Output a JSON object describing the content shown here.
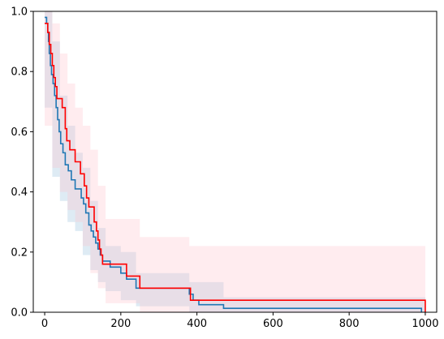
{
  "chart_data": {
    "type": "line",
    "title": "",
    "xlabel": "",
    "ylabel": "",
    "xlim": [
      -30,
      1030
    ],
    "ylim": [
      0,
      1
    ],
    "grid": false,
    "legend": null,
    "x_ticks": [
      "0",
      "200",
      "400",
      "600",
      "800",
      "1000"
    ],
    "y_ticks": [
      "0.0",
      "0.2",
      "0.4",
      "0.6",
      "0.8",
      "1.0"
    ],
    "series": [
      {
        "color": "#1f77b4",
        "style": "step",
        "points": [
          [
            0,
            0.98
          ],
          [
            5,
            0.96
          ],
          [
            8,
            0.93
          ],
          [
            10,
            0.9
          ],
          [
            12,
            0.86
          ],
          [
            15,
            0.82
          ],
          [
            18,
            0.79
          ],
          [
            22,
            0.76
          ],
          [
            26,
            0.72
          ],
          [
            30,
            0.68
          ],
          [
            34,
            0.64
          ],
          [
            38,
            0.6
          ],
          [
            42,
            0.56
          ],
          [
            48,
            0.53
          ],
          [
            54,
            0.49
          ],
          [
            62,
            0.47
          ],
          [
            70,
            0.44
          ],
          [
            80,
            0.41
          ],
          [
            96,
            0.38
          ],
          [
            102,
            0.36
          ],
          [
            108,
            0.33
          ],
          [
            116,
            0.29
          ],
          [
            122,
            0.27
          ],
          [
            128,
            0.25
          ],
          [
            134,
            0.23
          ],
          [
            140,
            0.21
          ],
          [
            146,
            0.19
          ],
          [
            152,
            0.17
          ],
          [
            172,
            0.15
          ],
          [
            200,
            0.13
          ],
          [
            215,
            0.11
          ],
          [
            240,
            0.08
          ],
          [
            380,
            0.06
          ],
          [
            390,
            0.04
          ],
          [
            405,
            0.025
          ],
          [
            470,
            0.013
          ],
          [
            990,
            0.0
          ]
        ],
        "ci_color": "#1f77b4",
        "ci_upper": [
          [
            0,
            1.0
          ],
          [
            20,
            0.9
          ],
          [
            40,
            0.72
          ],
          [
            60,
            0.62
          ],
          [
            80,
            0.53
          ],
          [
            100,
            0.48
          ],
          [
            120,
            0.37
          ],
          [
            140,
            0.28
          ],
          [
            160,
            0.22
          ],
          [
            200,
            0.2
          ],
          [
            240,
            0.13
          ],
          [
            380,
            0.1
          ],
          [
            470,
            0.05
          ],
          [
            1000,
            0.04
          ]
        ],
        "ci_lower": [
          [
            0,
            0.9
          ],
          [
            20,
            0.68
          ],
          [
            40,
            0.45
          ],
          [
            60,
            0.37
          ],
          [
            80,
            0.3
          ],
          [
            100,
            0.27
          ],
          [
            120,
            0.19
          ],
          [
            140,
            0.14
          ],
          [
            160,
            0.1
          ],
          [
            200,
            0.07
          ],
          [
            240,
            0.04
          ],
          [
            380,
            0.02
          ],
          [
            470,
            0.0
          ],
          [
            1000,
            0.0
          ]
        ]
      },
      {
        "color": "#ff0000",
        "style": "step",
        "points": [
          [
            0,
            0.96
          ],
          [
            8,
            0.93
          ],
          [
            12,
            0.89
          ],
          [
            16,
            0.86
          ],
          [
            20,
            0.82
          ],
          [
            24,
            0.78
          ],
          [
            28,
            0.75
          ],
          [
            32,
            0.71
          ],
          [
            44,
            0.71
          ],
          [
            46,
            0.68
          ],
          [
            54,
            0.61
          ],
          [
            58,
            0.57
          ],
          [
            66,
            0.54
          ],
          [
            80,
            0.5
          ],
          [
            94,
            0.46
          ],
          [
            104,
            0.42
          ],
          [
            110,
            0.38
          ],
          [
            116,
            0.35
          ],
          [
            130,
            0.3
          ],
          [
            136,
            0.27
          ],
          [
            140,
            0.24
          ],
          [
            144,
            0.21
          ],
          [
            148,
            0.19
          ],
          [
            152,
            0.16
          ],
          [
            185,
            0.16
          ],
          [
            215,
            0.12
          ],
          [
            250,
            0.08
          ],
          [
            383,
            0.04
          ],
          [
            1000,
            0.0
          ]
        ],
        "ci_color": "#ffc0cb",
        "ci_upper": [
          [
            0,
            1.0
          ],
          [
            20,
            0.96
          ],
          [
            40,
            0.86
          ],
          [
            60,
            0.76
          ],
          [
            80,
            0.68
          ],
          [
            100,
            0.62
          ],
          [
            120,
            0.54
          ],
          [
            140,
            0.42
          ],
          [
            160,
            0.31
          ],
          [
            250,
            0.25
          ],
          [
            380,
            0.22
          ],
          [
            1000,
            0.16
          ]
        ],
        "ci_lower": [
          [
            0,
            0.8
          ],
          [
            20,
            0.62
          ],
          [
            40,
            0.48
          ],
          [
            60,
            0.4
          ],
          [
            80,
            0.34
          ],
          [
            100,
            0.3
          ],
          [
            120,
            0.22
          ],
          [
            140,
            0.13
          ],
          [
            160,
            0.08
          ],
          [
            250,
            0.03
          ],
          [
            380,
            0.0
          ],
          [
            1000,
            0.0
          ]
        ]
      }
    ]
  }
}
